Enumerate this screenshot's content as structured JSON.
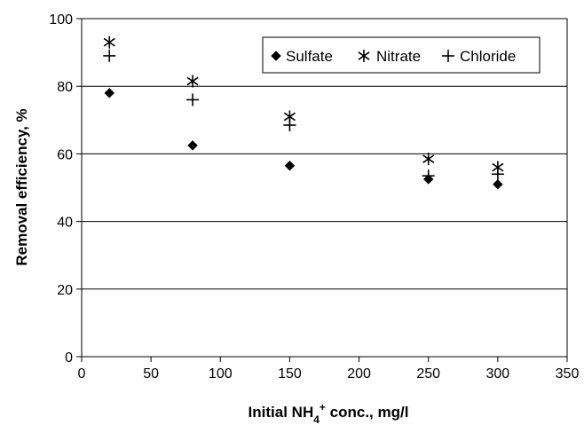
{
  "chart_data": {
    "type": "scatter",
    "title": "",
    "xlabel": "Initial NH",
    "xlabel_sub": "4",
    "xlabel_sup": "+",
    "xlabel_rest": " conc., mg/l",
    "ylabel": "Removal efficiency, %",
    "xlim": [
      0,
      350
    ],
    "ylim": [
      0,
      100
    ],
    "xticks": [
      "0",
      "50",
      "100",
      "150",
      "200",
      "250",
      "300",
      "350"
    ],
    "yticks": [
      "0",
      "20",
      "40",
      "60",
      "80",
      "100"
    ],
    "grid": "horizontal",
    "legend_position": "top-right",
    "x": [
      20,
      80,
      150,
      250,
      300
    ],
    "series": [
      {
        "name": "Sulfate",
        "marker": "diamond",
        "values": [
          78,
          62.5,
          56.5,
          52.5,
          51
        ]
      },
      {
        "name": "Nitrate",
        "marker": "asterisk",
        "values": [
          93,
          81.5,
          71,
          58.5,
          56
        ]
      },
      {
        "name": "Chloride",
        "marker": "plus",
        "values": [
          89,
          76,
          68.5,
          53.5,
          54
        ]
      }
    ]
  }
}
